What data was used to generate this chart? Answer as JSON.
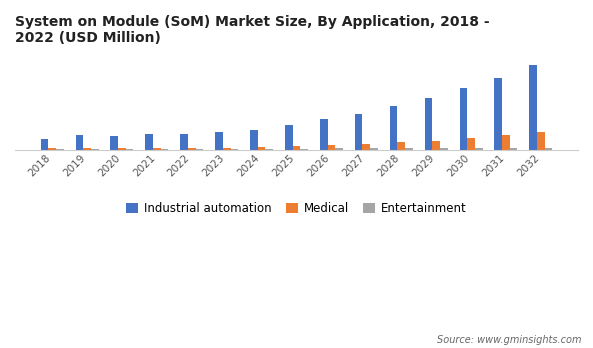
{
  "title": "System on Module (SoM) Market Size, By Application, 2018 -\n2022 (USD Million)",
  "years": [
    2018,
    2019,
    2020,
    2021,
    2022,
    2023,
    2024,
    2025,
    2026,
    2027,
    2028,
    2029,
    2030,
    2031,
    2032
  ],
  "industrial_automation": [
    100,
    130,
    125,
    135,
    140,
    155,
    175,
    215,
    265,
    310,
    375,
    445,
    530,
    615,
    720
  ],
  "medical": [
    18,
    22,
    20,
    22,
    20,
    22,
    30,
    35,
    48,
    52,
    68,
    80,
    105,
    130,
    158
  ],
  "entertainment": [
    10,
    12,
    10,
    11,
    10,
    11,
    14,
    15,
    18,
    16,
    18,
    16,
    18,
    18,
    22
  ],
  "colors": {
    "industrial_automation": "#4472C4",
    "medical": "#ED7D31",
    "entertainment": "#A5A5A5"
  },
  "legend_labels": [
    "Industrial automation",
    "Medical",
    "Entertainment"
  ],
  "source_text": "Source: www.gminsights.com",
  "bar_width": 0.22,
  "ylim": [
    0,
    820
  ],
  "background_color": "#FFFFFF"
}
